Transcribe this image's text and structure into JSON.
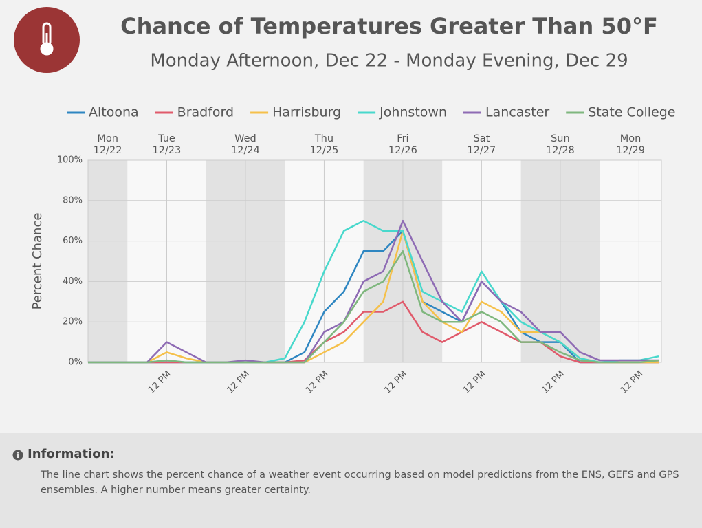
{
  "header": {
    "title": "Chance of Temperatures Greater Than 50°F",
    "subtitle": "Monday Afternoon, Dec 22 - Monday Evening, Dec 29"
  },
  "chart_data": {
    "type": "line",
    "ylabel": "Percent Chance",
    "x": [
      "12/22 12:00",
      "12/22 18:00",
      "12/23 00:00",
      "12/23 06:00",
      "12/23 12:00",
      "12/23 18:00",
      "12/24 00:00",
      "12/24 06:00",
      "12/24 12:00",
      "12/24 18:00",
      "12/25 00:00",
      "12/25 06:00",
      "12/25 12:00",
      "12/25 18:00",
      "12/26 00:00",
      "12/26 06:00",
      "12/26 12:00",
      "12/26 18:00",
      "12/27 00:00",
      "12/27 06:00",
      "12/27 12:00",
      "12/27 18:00",
      "12/28 00:00",
      "12/28 06:00",
      "12/28 12:00",
      "12/28 18:00",
      "12/29 00:00",
      "12/29 06:00",
      "12/29 12:00",
      "12/29 18:00"
    ],
    "xlim": [
      "12/22 12:00",
      "12/29 18:00"
    ],
    "xticks": [
      {
        "value": "12/23 12:00",
        "label": "12 PM"
      },
      {
        "value": "12/24 12:00",
        "label": "12 PM"
      },
      {
        "value": "12/25 12:00",
        "label": "12 PM"
      },
      {
        "value": "12/26 12:00",
        "label": "12 PM"
      },
      {
        "value": "12/27 12:00",
        "label": "12 PM"
      },
      {
        "value": "12/28 12:00",
        "label": "12 PM"
      },
      {
        "value": "12/29 12:00",
        "label": "12 PM"
      }
    ],
    "day_labels": [
      {
        "day": "Mon",
        "date": "12/22"
      },
      {
        "day": "Tue",
        "date": "12/23"
      },
      {
        "day": "Wed",
        "date": "12/24"
      },
      {
        "day": "Thu",
        "date": "12/25"
      },
      {
        "day": "Fri",
        "date": "12/26"
      },
      {
        "day": "Sat",
        "date": "12/27"
      },
      {
        "day": "Sun",
        "date": "12/28"
      },
      {
        "day": "Mon",
        "date": "12/29"
      }
    ],
    "ylim": [
      0,
      100
    ],
    "yticks": [
      {
        "value": 0,
        "label": "0%"
      },
      {
        "value": 20,
        "label": "20%"
      },
      {
        "value": 40,
        "label": "40%"
      },
      {
        "value": 60,
        "label": "60%"
      },
      {
        "value": 80,
        "label": "80%"
      },
      {
        "value": 100,
        "label": "100%"
      }
    ],
    "grid": true,
    "series": [
      {
        "name": "Altoona",
        "color": "#2e86c1",
        "values": [
          0,
          0,
          0,
          0,
          0,
          0,
          0,
          0,
          0,
          0,
          0,
          5,
          25,
          35,
          55,
          55,
          65,
          30,
          25,
          20,
          40,
          30,
          15,
          10,
          10,
          0,
          0,
          0,
          0,
          0
        ]
      },
      {
        "name": "Bradford",
        "color": "#e05a6b",
        "values": [
          0,
          0,
          0,
          0,
          0,
          0,
          0,
          0,
          0,
          0,
          0,
          1,
          10,
          15,
          25,
          25,
          30,
          15,
          10,
          15,
          20,
          15,
          10,
          10,
          3,
          0,
          0,
          0,
          0,
          0
        ]
      },
      {
        "name": "Harrisburg",
        "color": "#f5c04a",
        "values": [
          0,
          0,
          0,
          0,
          5,
          2,
          0,
          0,
          0,
          0,
          0,
          0,
          5,
          10,
          20,
          30,
          65,
          30,
          20,
          15,
          30,
          25,
          15,
          15,
          10,
          2,
          0,
          0,
          0,
          0
        ]
      },
      {
        "name": "Johnstown",
        "color": "#48d8cc",
        "values": [
          0,
          0,
          0,
          0,
          1,
          0,
          0,
          0,
          0,
          0,
          2,
          20,
          45,
          65,
          70,
          65,
          65,
          35,
          30,
          25,
          45,
          30,
          20,
          15,
          10,
          2,
          0,
          1,
          1,
          3
        ]
      },
      {
        "name": "Lancaster",
        "color": "#8e6bb4",
        "values": [
          0,
          0,
          0,
          0,
          10,
          5,
          0,
          0,
          1,
          0,
          0,
          0,
          15,
          20,
          40,
          45,
          70,
          50,
          30,
          20,
          40,
          30,
          25,
          15,
          15,
          5,
          1,
          1,
          1,
          1
        ]
      },
      {
        "name": "State College",
        "color": "#7fb77e",
        "values": [
          0,
          0,
          0,
          0,
          1,
          0,
          0,
          0,
          0,
          0,
          0,
          0,
          10,
          20,
          35,
          40,
          55,
          25,
          20,
          20,
          25,
          20,
          10,
          10,
          5,
          1,
          0,
          0,
          0,
          1
        ]
      }
    ]
  },
  "info": {
    "title": "Information:",
    "text": "The line chart shows the percent chance of a weather event occurring based on model predictions from the ENS, GEFS and GPS ensembles. A higher number means greater certainty."
  }
}
